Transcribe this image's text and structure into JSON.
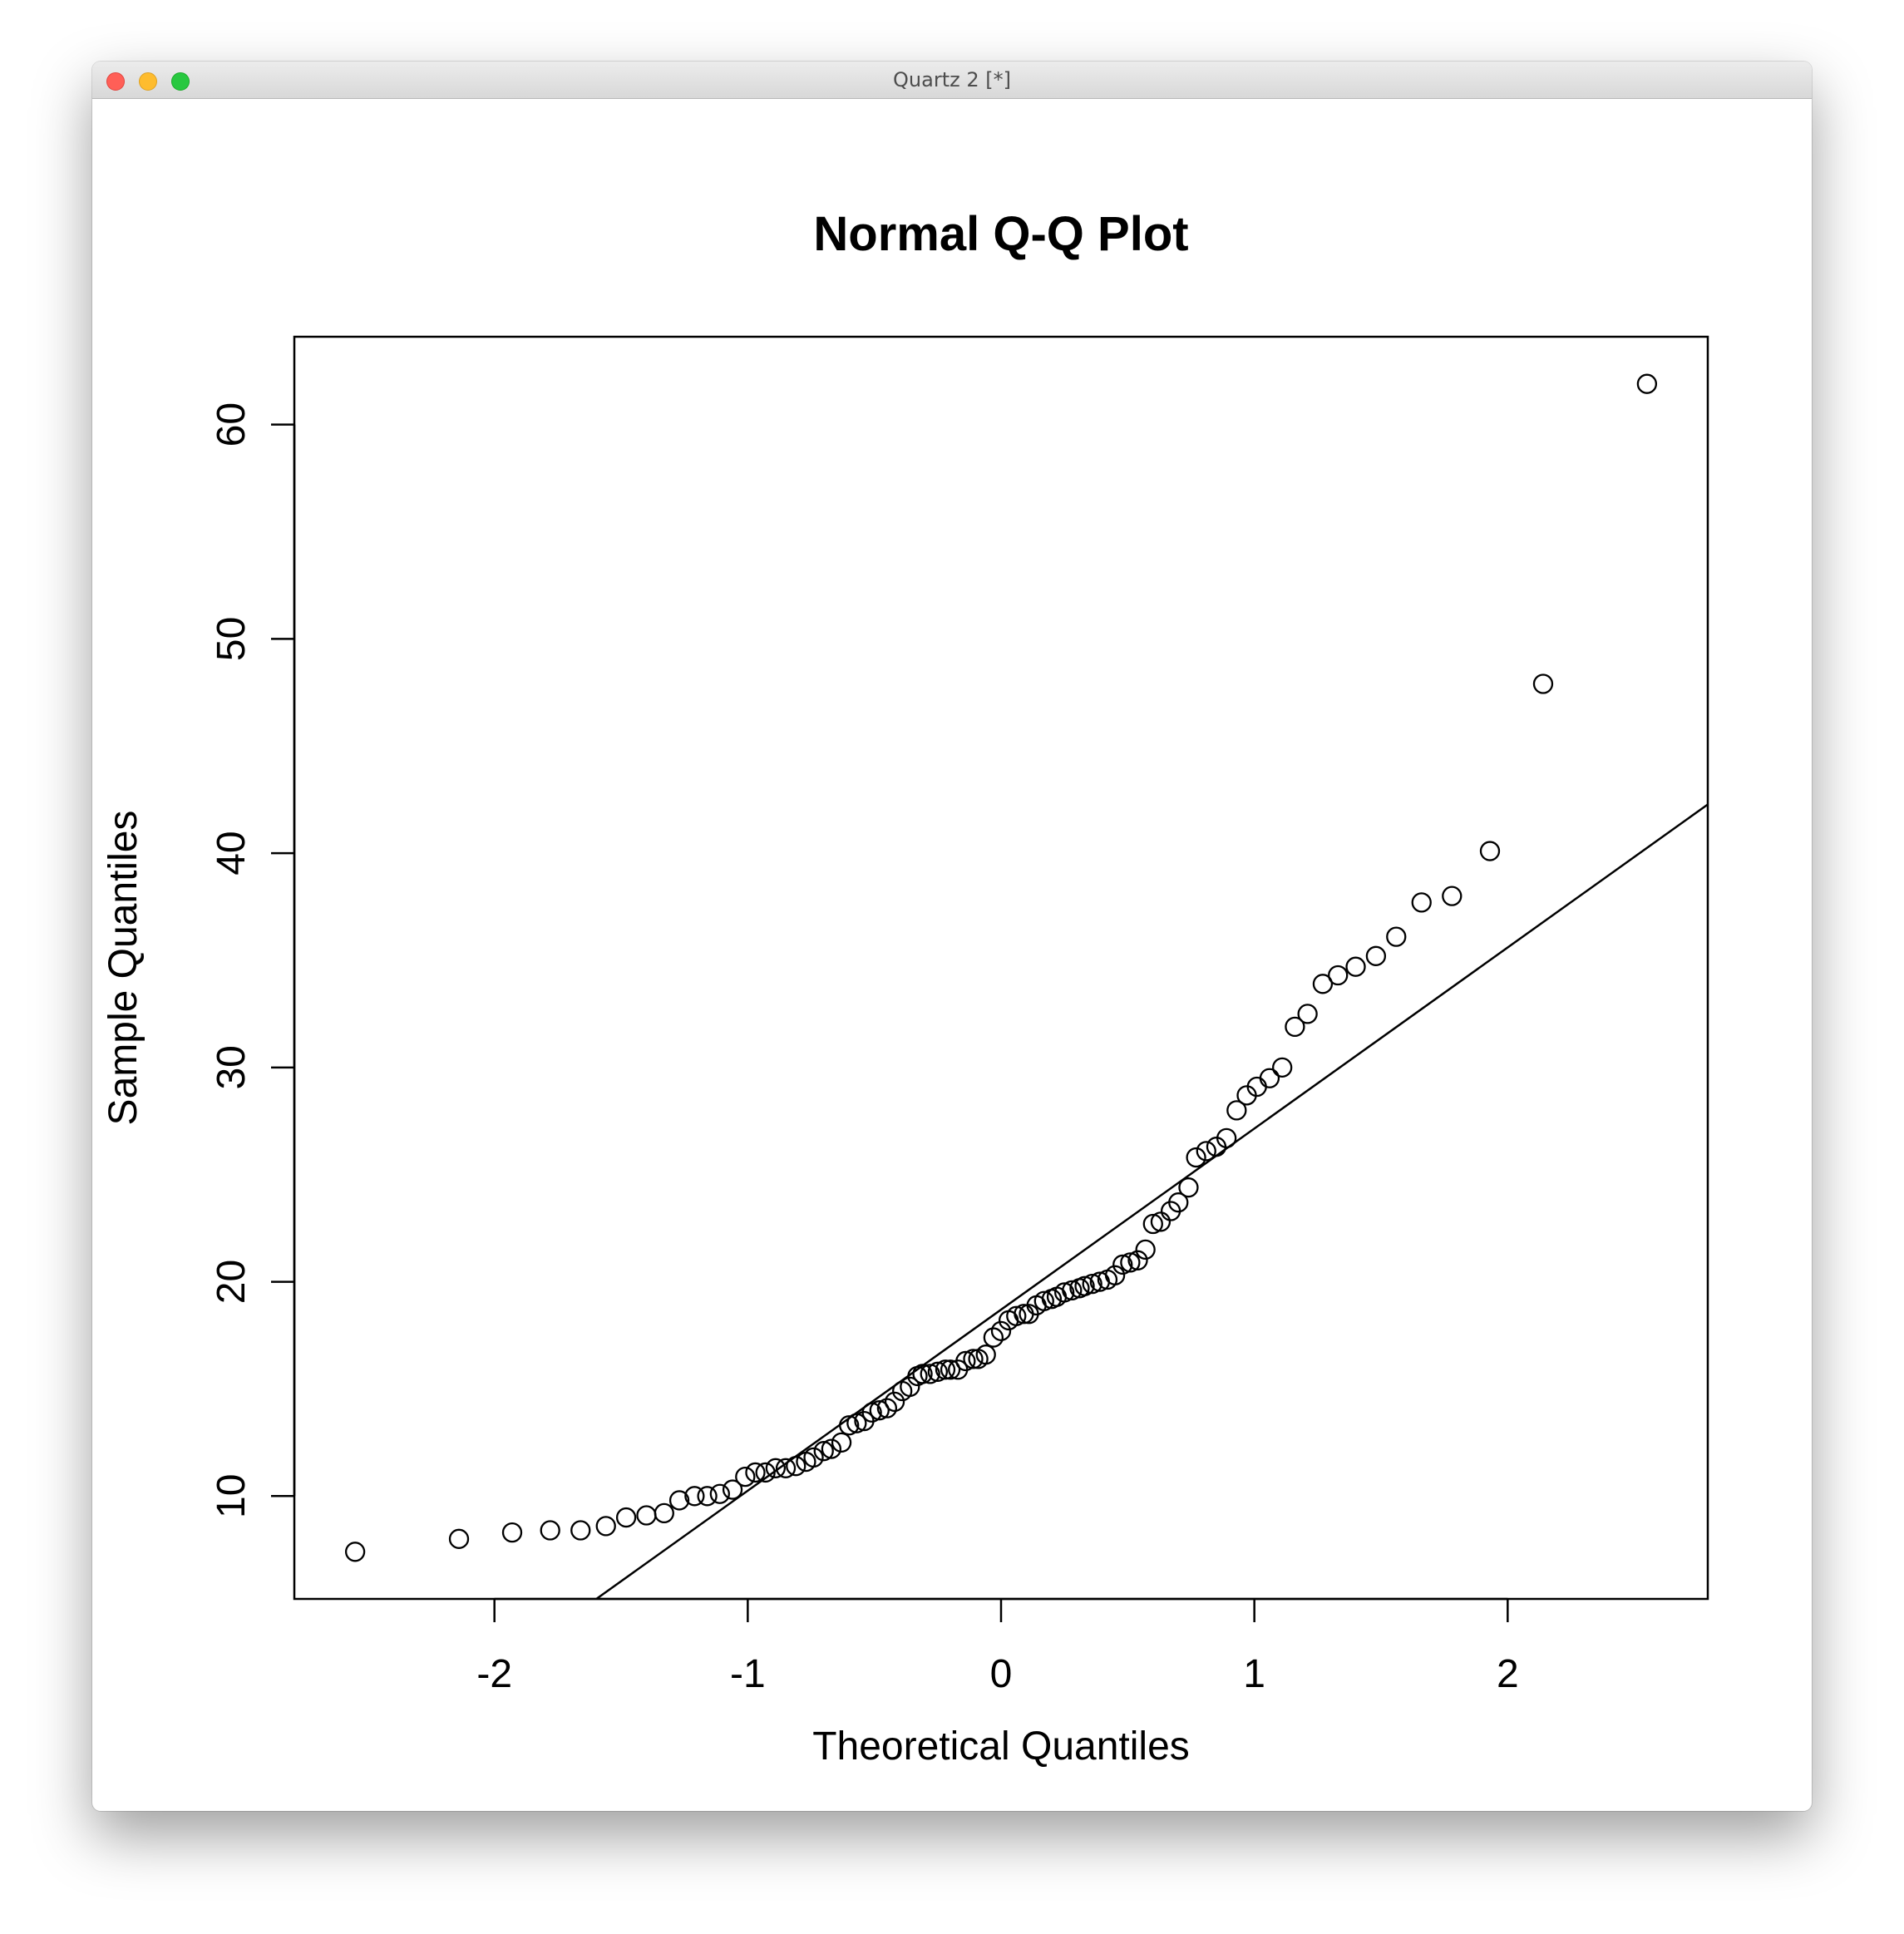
{
  "window": {
    "title": "Quartz 2 [*]"
  },
  "chart_data": {
    "type": "scatter",
    "title": "Normal Q-Q Plot",
    "xlabel": "Theoretical Quantiles",
    "ylabel": "Sample Quantiles",
    "xlim": [
      -2.79,
      2.79
    ],
    "ylim": [
      5.2,
      64.1
    ],
    "xticks": [
      -2,
      -1,
      0,
      1,
      2
    ],
    "xtick_labels": [
      "-2",
      "-1",
      "0",
      "1",
      "2"
    ],
    "yticks": [
      10,
      20,
      30,
      40,
      50,
      60
    ],
    "ytick_labels": [
      "10",
      "20",
      "30",
      "40",
      "50",
      "60"
    ],
    "grid": false,
    "marker": "open-circle",
    "reference_line": {
      "intercept": 18.7,
      "slope": 8.45
    },
    "points": [
      [
        -2.55,
        7.4
      ],
      [
        -2.14,
        8.0
      ],
      [
        -1.93,
        8.3
      ],
      [
        -1.78,
        8.4
      ],
      [
        -1.66,
        8.4
      ],
      [
        -1.56,
        8.6
      ],
      [
        -1.48,
        9.0
      ],
      [
        -1.4,
        9.1
      ],
      [
        -1.33,
        9.2
      ],
      [
        -1.27,
        9.8
      ],
      [
        -1.21,
        10.0
      ],
      [
        -1.16,
        10.0
      ],
      [
        -1.11,
        10.1
      ],
      [
        -1.06,
        10.3
      ],
      [
        -1.01,
        10.9
      ],
      [
        -0.97,
        11.1
      ],
      [
        -0.93,
        11.1
      ],
      [
        -0.89,
        11.3
      ],
      [
        -0.85,
        11.3
      ],
      [
        -0.81,
        11.4
      ],
      [
        -0.77,
        11.6
      ],
      [
        -0.74,
        11.8
      ],
      [
        -0.7,
        12.1
      ],
      [
        -0.67,
        12.2
      ],
      [
        -0.63,
        12.5
      ],
      [
        -0.6,
        13.3
      ],
      [
        -0.57,
        13.4
      ],
      [
        -0.54,
        13.5
      ],
      [
        -0.51,
        13.9
      ],
      [
        -0.48,
        14.0
      ],
      [
        -0.45,
        14.1
      ],
      [
        -0.42,
        14.4
      ],
      [
        -0.39,
        14.9
      ],
      [
        -0.36,
        15.1
      ],
      [
        -0.33,
        15.6
      ],
      [
        -0.31,
        15.7
      ],
      [
        -0.28,
        15.7
      ],
      [
        -0.25,
        15.8
      ],
      [
        -0.22,
        15.9
      ],
      [
        -0.2,
        15.9
      ],
      [
        -0.17,
        15.9
      ],
      [
        -0.14,
        16.3
      ],
      [
        -0.11,
        16.4
      ],
      [
        -0.09,
        16.4
      ],
      [
        -0.06,
        16.6
      ],
      [
        -0.03,
        17.4
      ],
      [
        0.0,
        17.7
      ],
      [
        0.03,
        18.2
      ],
      [
        0.06,
        18.4
      ],
      [
        0.09,
        18.5
      ],
      [
        0.11,
        18.5
      ],
      [
        0.14,
        18.9
      ],
      [
        0.17,
        19.1
      ],
      [
        0.2,
        19.2
      ],
      [
        0.22,
        19.3
      ],
      [
        0.25,
        19.5
      ],
      [
        0.28,
        19.6
      ],
      [
        0.31,
        19.7
      ],
      [
        0.33,
        19.8
      ],
      [
        0.36,
        19.9
      ],
      [
        0.39,
        20.0
      ],
      [
        0.42,
        20.1
      ],
      [
        0.45,
        20.3
      ],
      [
        0.48,
        20.8
      ],
      [
        0.51,
        20.9
      ],
      [
        0.54,
        21.0
      ],
      [
        0.57,
        21.5
      ],
      [
        0.6,
        22.7
      ],
      [
        0.63,
        22.8
      ],
      [
        0.67,
        23.3
      ],
      [
        0.7,
        23.7
      ],
      [
        0.74,
        24.4
      ],
      [
        0.77,
        25.8
      ],
      [
        0.81,
        26.1
      ],
      [
        0.85,
        26.3
      ],
      [
        0.89,
        26.7
      ],
      [
        0.93,
        28.0
      ],
      [
        0.97,
        28.7
      ],
      [
        1.01,
        29.1
      ],
      [
        1.06,
        29.5
      ],
      [
        1.11,
        30.0
      ],
      [
        1.16,
        31.9
      ],
      [
        1.21,
        32.5
      ],
      [
        1.27,
        33.9
      ],
      [
        1.33,
        34.3
      ],
      [
        1.4,
        34.7
      ],
      [
        1.48,
        35.2
      ],
      [
        1.56,
        36.1
      ],
      [
        1.66,
        37.7
      ],
      [
        1.78,
        38.0
      ],
      [
        1.93,
        40.1
      ],
      [
        2.14,
        47.9
      ],
      [
        2.55,
        61.9
      ]
    ]
  }
}
